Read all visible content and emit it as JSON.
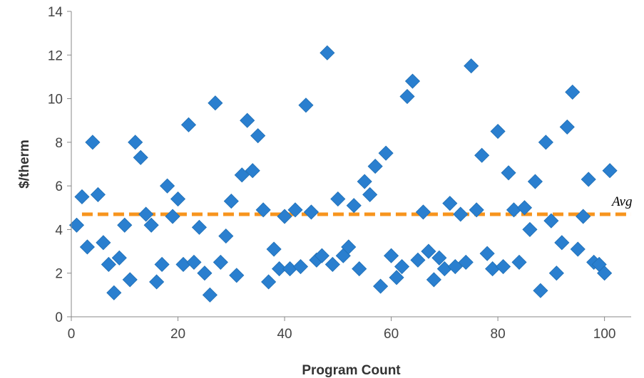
{
  "chart_data": {
    "type": "scatter",
    "title": "",
    "xlabel": "Program Count",
    "ylabel": "$/therm",
    "xlim": [
      0,
      105
    ],
    "ylim": [
      0,
      14
    ],
    "x_ticks": [
      "0",
      "20",
      "40",
      "60",
      "80",
      "100"
    ],
    "y_ticks": [
      "0",
      "2",
      "4",
      "6",
      "8",
      "10",
      "12",
      "14"
    ],
    "grid": false,
    "marker_color": "#2A7FCF",
    "avg_line": {
      "label": "Avg",
      "value": 4.7,
      "color": "#F7941D"
    },
    "points": [
      [
        1,
        4.2
      ],
      [
        2,
        5.5
      ],
      [
        3,
        3.2
      ],
      [
        4,
        8.0
      ],
      [
        5,
        5.6
      ],
      [
        6,
        3.4
      ],
      [
        7,
        2.4
      ],
      [
        8,
        1.1
      ],
      [
        9,
        2.7
      ],
      [
        10,
        4.2
      ],
      [
        11,
        1.7
      ],
      [
        12,
        8.0
      ],
      [
        13,
        7.3
      ],
      [
        14,
        4.7
      ],
      [
        15,
        4.2
      ],
      [
        16,
        1.6
      ],
      [
        17,
        2.4
      ],
      [
        18,
        6.0
      ],
      [
        19,
        4.6
      ],
      [
        20,
        5.4
      ],
      [
        21,
        2.4
      ],
      [
        22,
        8.8
      ],
      [
        23,
        2.5
      ],
      [
        24,
        4.1
      ],
      [
        25,
        2.0
      ],
      [
        26,
        1.0
      ],
      [
        27,
        9.8
      ],
      [
        28,
        2.5
      ],
      [
        29,
        3.7
      ],
      [
        30,
        5.3
      ],
      [
        31,
        1.9
      ],
      [
        32,
        6.5
      ],
      [
        33,
        9.0
      ],
      [
        34,
        6.7
      ],
      [
        35,
        8.3
      ],
      [
        36,
        4.9
      ],
      [
        37,
        1.6
      ],
      [
        38,
        3.1
      ],
      [
        39,
        2.2
      ],
      [
        40,
        4.6
      ],
      [
        41,
        2.2
      ],
      [
        42,
        4.9
      ],
      [
        43,
        2.3
      ],
      [
        44,
        9.7
      ],
      [
        45,
        4.8
      ],
      [
        46,
        2.6
      ],
      [
        47,
        2.8
      ],
      [
        48,
        12.1
      ],
      [
        49,
        2.4
      ],
      [
        50,
        5.4
      ],
      [
        51,
        2.8
      ],
      [
        52,
        3.2
      ],
      [
        53,
        5.1
      ],
      [
        54,
        2.2
      ],
      [
        55,
        6.2
      ],
      [
        56,
        5.6
      ],
      [
        57,
        6.9
      ],
      [
        58,
        1.4
      ],
      [
        59,
        7.5
      ],
      [
        60,
        2.8
      ],
      [
        61,
        1.8
      ],
      [
        62,
        2.3
      ],
      [
        63,
        10.1
      ],
      [
        64,
        10.8
      ],
      [
        65,
        2.6
      ],
      [
        66,
        4.8
      ],
      [
        67,
        3.0
      ],
      [
        68,
        1.7
      ],
      [
        69,
        2.7
      ],
      [
        70,
        2.2
      ],
      [
        71,
        5.2
      ],
      [
        72,
        2.3
      ],
      [
        73,
        4.7
      ],
      [
        74,
        2.5
      ],
      [
        75,
        11.5
      ],
      [
        76,
        4.9
      ],
      [
        77,
        7.4
      ],
      [
        78,
        2.9
      ],
      [
        79,
        2.2
      ],
      [
        80,
        8.5
      ],
      [
        81,
        2.3
      ],
      [
        82,
        6.6
      ],
      [
        83,
        4.9
      ],
      [
        84,
        2.5
      ],
      [
        85,
        5.0
      ],
      [
        86,
        4.0
      ],
      [
        87,
        6.2
      ],
      [
        88,
        1.2
      ],
      [
        89,
        8.0
      ],
      [
        90,
        4.4
      ],
      [
        91,
        2.0
      ],
      [
        92,
        3.4
      ],
      [
        93,
        8.7
      ],
      [
        94,
        10.3
      ],
      [
        95,
        3.1
      ],
      [
        96,
        4.6
      ],
      [
        97,
        6.3
      ],
      [
        98,
        2.5
      ],
      [
        99,
        2.4
      ],
      [
        100,
        2.0
      ],
      [
        101,
        6.7
      ]
    ]
  }
}
